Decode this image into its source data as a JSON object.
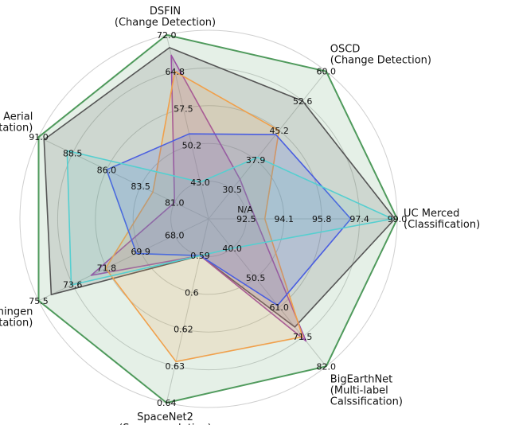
{
  "chart_data": {
    "type": "radar",
    "center_label": "N/A",
    "axes": [
      {
        "name": "UC Merced",
        "task": "(Classification)",
        "min": 92.5,
        "max": 99.0,
        "ticks": [
          "92.5",
          "94.1",
          "95.8",
          "97.4",
          "99.0"
        ]
      },
      {
        "name": "OSCD",
        "task": "(Change Detection)",
        "min": 30.5,
        "max": 60.0,
        "ticks": [
          "30.5",
          "37.9",
          "45.2",
          "52.6",
          "60.0"
        ]
      },
      {
        "name": "DSFIN",
        "task": "(Change Detection)",
        "min": 43.0,
        "max": 72.0,
        "ticks": [
          "43.0",
          "50.2",
          "57.5",
          "64.8",
          "72.0"
        ]
      },
      {
        "name": "WHU Aerial",
        "task": "(Segmentation)",
        "min": 81.0,
        "max": 91.0,
        "ticks": [
          "81.0",
          "83.5",
          "86.0",
          "88.5",
          "91.0"
        ]
      },
      {
        "name": "Vaihingen",
        "task": "(Segmentation)",
        "min": 68.0,
        "max": 75.5,
        "ticks": [
          "68.0",
          "69.9",
          "71.8",
          "73.6",
          "75.5"
        ]
      },
      {
        "name": "SpaceNet2",
        "task": "(Super-resolution)",
        "min": 0.59,
        "max": 0.64,
        "ticks": [
          "0.59",
          "0.6",
          "0.62",
          "0.63",
          "0.64"
        ]
      },
      {
        "name": "BigEarthNet",
        "task": "(Multi-label\nCalssification)",
        "min": 40.0,
        "max": 82.0,
        "ticks": [
          "40.0",
          "50.5",
          "61.0",
          "71.5",
          "82.0"
        ]
      }
    ],
    "series": [
      {
        "color": "#4f9a5c",
        "fill_opacity": 0.15,
        "line_width": 2,
        "values": [
          99.0,
          60.0,
          72.0,
          91.0,
          75.5,
          0.64,
          82.0
        ]
      },
      {
        "color": "#555555",
        "fill_opacity": 0.16,
        "line_width": 1.6,
        "values": [
          98.9,
          52.6,
          69.5,
          90.6,
          74.8,
          0.59,
          68.0
        ]
      },
      {
        "color": "#9b4fa3",
        "fill_opacity": 0.14,
        "line_width": 1.6,
        "values": [
          92.9,
          33.0,
          68.0,
          81.0,
          72.6,
          0.59,
          73.0
        ]
      },
      {
        "color": "#f0a04b",
        "fill_opacity": 0.16,
        "line_width": 1.6,
        "values": [
          93.3,
          45.2,
          64.8,
          82.6,
          71.8,
          0.626,
          71.5
        ]
      },
      {
        "color": "#4a5ee0",
        "fill_opacity": 0.18,
        "line_width": 1.6,
        "values": [
          97.0,
          44.2,
          52.5,
          86.0,
          70.1,
          0.59,
          60.3
        ]
      },
      {
        "color": "#55cfd0",
        "fill_opacity": 0.12,
        "line_width": 1.6,
        "values": [
          98.8,
          38.5,
          43.0,
          88.9,
          73.7,
          0.59,
          40.0
        ]
      }
    ]
  }
}
